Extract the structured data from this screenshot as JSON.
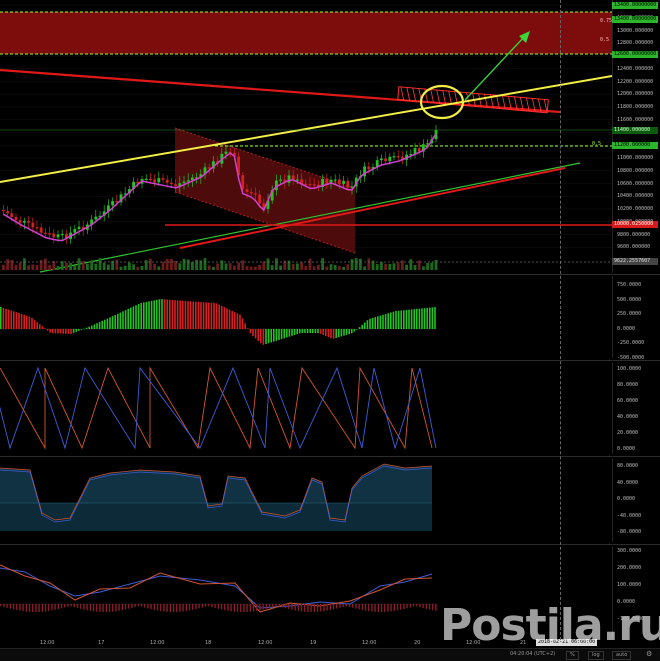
{
  "price_axis": {
    "ticks": [
      "13400.000000",
      "13200.000000",
      "13000.000000",
      "12800.000000",
      "12600.000000",
      "12400.000000",
      "12200.000000",
      "12000.000000",
      "11800.000000",
      "11600.000000",
      "11400.000000",
      "11200.000000",
      "11000.000000",
      "10800.000000",
      "10600.000000",
      "10400.000000",
      "10200.000000",
      "10000.000000",
      "9800.000000",
      "9600.000000"
    ],
    "tags": {
      "top_green": "13400.00000000",
      "zone_green": "12600.00000000",
      "current": "11400.000000",
      "level_green": "11200.000000",
      "red_level": "10000.0250000",
      "low_level": "9622.2557607"
    },
    "zone_labels": [
      "0.75",
      "0.5"
    ],
    "level_label": "0.5"
  },
  "histogram_axis": [
    "750.0000",
    "500.0000",
    "250.0000",
    "0.0000",
    "-250.0000",
    "-500.0000"
  ],
  "aroon_axis": [
    "100.0000",
    "80.0000",
    "60.0000",
    "40.0000",
    "20.0000",
    "0.0000"
  ],
  "osc_axis": [
    "80.0000",
    "40.0000",
    "0.0000",
    "-40.0000",
    "-80.0000"
  ],
  "macd_axis": [
    "300.0000",
    "200.0000",
    "100.0000",
    "0.0000",
    "-100.0000"
  ],
  "time_axis": {
    "labels": [
      {
        "text": "12:00",
        "x": 40
      },
      {
        "text": "17",
        "x": 98
      },
      {
        "text": "12:00",
        "x": 150
      },
      {
        "text": "18",
        "x": 205
      },
      {
        "text": "12:00",
        "x": 258
      },
      {
        "text": "19",
        "x": 310
      },
      {
        "text": "12:00",
        "x": 362
      },
      {
        "text": "20",
        "x": 414
      },
      {
        "text": "12:00",
        "x": 466
      },
      {
        "text": "21",
        "x": 520
      }
    ],
    "cursor_date": "2018-02-21 06:00:00"
  },
  "bottom_bar": {
    "clock": "04:20:04 (UTC+2)",
    "buttons": [
      "%",
      "log",
      "auto"
    ]
  },
  "watermark": "Postila.ru",
  "colors": {
    "bull": "#22c322",
    "bear": "#d62020",
    "yellow": "#f2ee46",
    "red_line": "#e01818",
    "green_line": "#39d839",
    "magenta": "#d040d0",
    "lime_dash": "#9aff2a",
    "aroon_up": "#d2562e",
    "aroon_down": "#3d5dd8"
  }
}
